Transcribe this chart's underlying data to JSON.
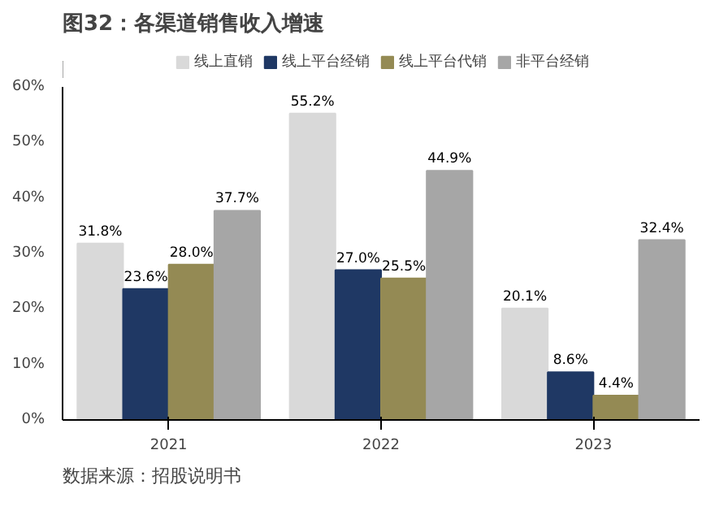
{
  "chart_data": {
    "type": "bar",
    "title": "图32：各渠道销售收入增速",
    "categories": [
      "2021",
      "2022",
      "2023"
    ],
    "series": [
      {
        "name": "线上直销",
        "color": "#d9d9d9",
        "values": [
          31.8,
          55.2,
          20.1
        ],
        "value_labels": [
          "31.8%",
          "55.2%",
          "20.1%"
        ]
      },
      {
        "name": "线上平台经销",
        "color": "#1f3864",
        "values": [
          23.6,
          27.0,
          8.6
        ],
        "value_labels": [
          "23.6%",
          "27.0%",
          "8.6%"
        ]
      },
      {
        "name": "线上平台代销",
        "color": "#948a54",
        "values": [
          28.0,
          25.5,
          4.4
        ],
        "value_labels": [
          "28.0%",
          "25.5%",
          "4.4%"
        ]
      },
      {
        "name": "非平台经销",
        "color": "#a6a6a6",
        "values": [
          37.7,
          44.9,
          32.4
        ],
        "value_labels": [
          "37.7%",
          "44.9%",
          "32.4%"
        ]
      }
    ],
    "ylim": [
      0,
      60
    ],
    "yticks": [
      {
        "value": 0,
        "label": "0%"
      },
      {
        "value": 10,
        "label": "10%"
      },
      {
        "value": 20,
        "label": "20%"
      },
      {
        "value": 30,
        "label": "30%"
      },
      {
        "value": 40,
        "label": "40%"
      },
      {
        "value": 50,
        "label": "50%"
      },
      {
        "value": 60,
        "label": "60%"
      }
    ],
    "legend": "top",
    "annotations": [
      "数据来源：招股说明书"
    ]
  }
}
